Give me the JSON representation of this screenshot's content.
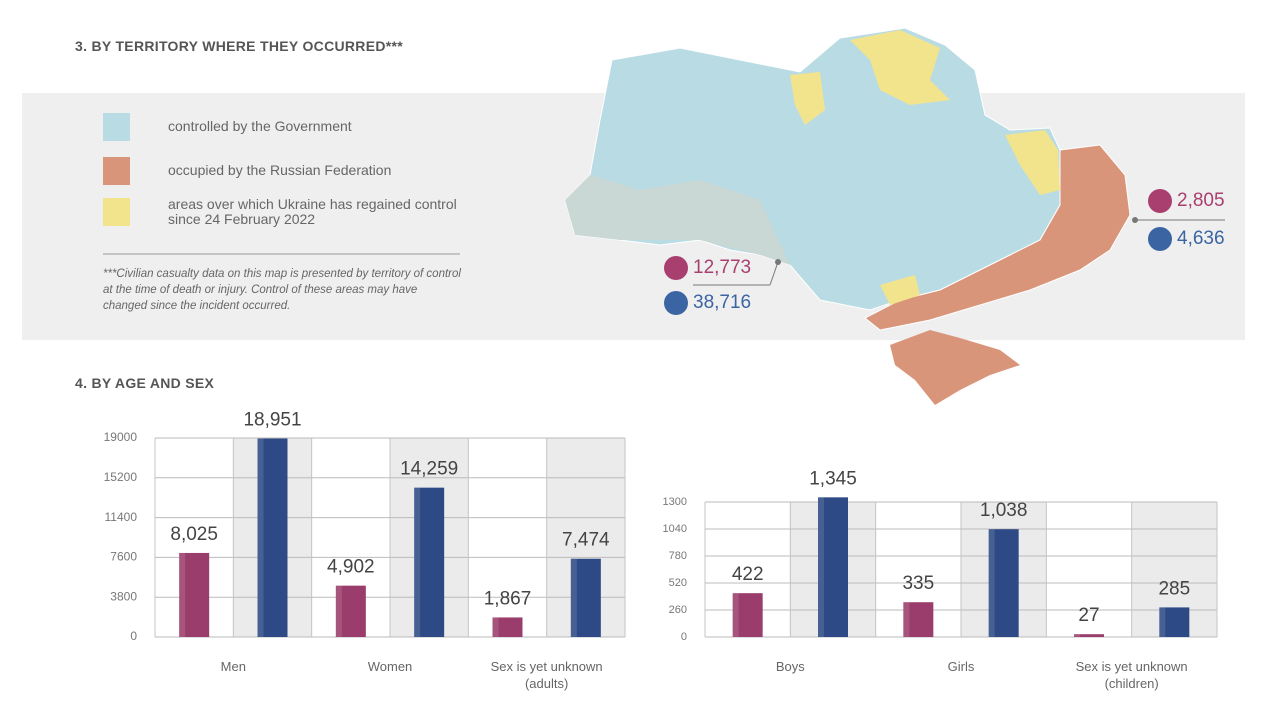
{
  "section_territory": {
    "title": "3. BY TERRITORY WHERE THEY OCCURRED***",
    "legend": [
      {
        "label": "controlled by the Government",
        "color": "#b9dbe3"
      },
      {
        "label": "occupied by the Russian Federation",
        "color": "#d9957a"
      },
      {
        "label": "areas over which Ukraine has regained control since 24 February 2022",
        "color": "#f2e48c"
      }
    ],
    "note": "***Civilian casualty data on this map is presented by territory of control at the time of death or injury. Control of these areas may have changed since the incident occurred.",
    "map_labels": [
      {
        "figures": [
          "12,773",
          "38,716"
        ]
      },
      {
        "figures": [
          "2,805",
          "4,636"
        ]
      }
    ]
  },
  "section_age_sex": {
    "title": "4. BY AGE AND SEX"
  },
  "chart_data": [
    {
      "type": "bar",
      "categories": [
        "Men",
        "Women",
        "Sex is yet unknown (adults)"
      ],
      "series": [
        {
          "color": "#9b3d6c",
          "values": [
            8025,
            4902,
            1867
          ],
          "value_labels": [
            "8,025",
            "4,902",
            "1,867"
          ]
        },
        {
          "color": "#2d4a86",
          "values": [
            18951,
            14259,
            7474
          ],
          "value_labels": [
            "18,951",
            "14,259",
            "7,474"
          ]
        }
      ],
      "ylim": [
        0,
        19000
      ],
      "yticks": [
        0,
        3800,
        7600,
        11400,
        15200,
        19000
      ],
      "grid": true
    },
    {
      "type": "bar",
      "categories": [
        "Boys",
        "Girls",
        "Sex is yet unknown (children)"
      ],
      "series": [
        {
          "color": "#9b3d6c",
          "values": [
            422,
            335,
            27
          ]
        },
        {
          "color": "#2d4a86",
          "values": [
            1345,
            1038,
            285
          ],
          "value_labels": [
            "1,345",
            "1,038"
          ]
        }
      ],
      "ylim": [
        0,
        1300
      ],
      "yticks": [
        0,
        260,
        520,
        780,
        1040,
        1300
      ],
      "grid": true
    }
  ]
}
